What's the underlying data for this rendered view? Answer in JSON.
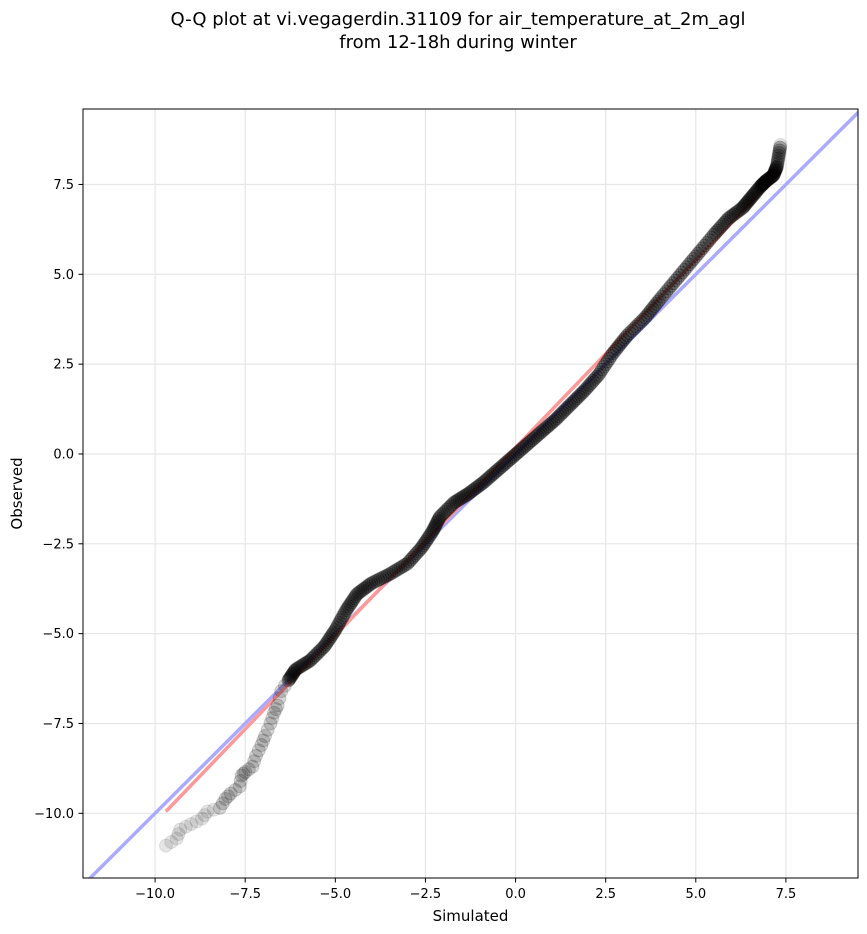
{
  "title": {
    "line1": "Q-Q plot at vi.vegagerdin.31109 for air_temperature_at_2m_agl",
    "line2": "from 12-18h during winter"
  },
  "chart_data": {
    "type": "scatter",
    "xlabel": "Simulated",
    "ylabel": "Observed",
    "xlim": [
      -12,
      9.5
    ],
    "ylim": [
      -11.8,
      9.6
    ],
    "xticks": [
      -10.0,
      -7.5,
      -5.0,
      -2.5,
      0.0,
      2.5,
      5.0,
      7.5
    ],
    "xtick_labels": [
      "−10.0",
      "−7.5",
      "−5.0",
      "−2.5",
      "0.0",
      "2.5",
      "5.0",
      "7.5"
    ],
    "yticks": [
      -10.0,
      -7.5,
      -5.0,
      -2.5,
      0.0,
      2.5,
      5.0,
      7.5
    ],
    "ytick_labels": [
      "−10.0",
      "−7.5",
      "−5.0",
      "−2.5",
      "0.0",
      "2.5",
      "5.0",
      "7.5"
    ],
    "grid": true,
    "reference_line": {
      "slope": 1,
      "intercept": 0,
      "color": "#aaaaff"
    },
    "fit_line": {
      "x": [
        -9.7,
        7.35
      ],
      "y": [
        -9.95,
        7.85
      ],
      "color": "#ff9999"
    },
    "point_color": "#000000",
    "quantile_curve": [
      [
        -9.7,
        -10.9
      ],
      [
        -9.4,
        -10.7
      ],
      [
        -9.3,
        -10.45
      ],
      [
        -9.0,
        -10.3
      ],
      [
        -8.7,
        -10.15
      ],
      [
        -8.55,
        -9.95
      ],
      [
        -8.2,
        -9.85
      ],
      [
        -8.05,
        -9.6
      ],
      [
        -7.9,
        -9.45
      ],
      [
        -7.65,
        -9.25
      ],
      [
        -7.6,
        -8.95
      ],
      [
        -7.5,
        -8.85
      ],
      [
        -7.3,
        -8.7
      ],
      [
        -7.2,
        -8.4
      ],
      [
        -7.05,
        -8.1
      ],
      [
        -6.95,
        -7.85
      ],
      [
        -6.8,
        -7.5
      ],
      [
        -6.7,
        -7.2
      ],
      [
        -6.6,
        -7.0
      ],
      [
        -6.5,
        -6.6
      ],
      [
        -6.3,
        -6.3
      ],
      [
        -6.1,
        -6.0
      ],
      [
        -5.7,
        -5.75
      ],
      [
        -5.3,
        -5.35
      ],
      [
        -5.0,
        -4.9
      ],
      [
        -4.7,
        -4.35
      ],
      [
        -4.4,
        -3.9
      ],
      [
        -4.0,
        -3.6
      ],
      [
        -3.5,
        -3.35
      ],
      [
        -3.0,
        -3.05
      ],
      [
        -2.6,
        -2.6
      ],
      [
        -2.3,
        -2.15
      ],
      [
        -2.1,
        -1.75
      ],
      [
        -1.7,
        -1.35
      ],
      [
        -1.3,
        -1.1
      ],
      [
        -0.9,
        -0.8
      ],
      [
        -0.5,
        -0.45
      ],
      [
        -0.1,
        -0.1
      ],
      [
        0.3,
        0.25
      ],
      [
        0.7,
        0.6
      ],
      [
        1.1,
        0.95
      ],
      [
        1.5,
        1.35
      ],
      [
        1.9,
        1.75
      ],
      [
        2.3,
        2.2
      ],
      [
        2.7,
        2.8
      ],
      [
        3.1,
        3.3
      ],
      [
        3.6,
        3.8
      ],
      [
        4.0,
        4.3
      ],
      [
        4.5,
        4.9
      ],
      [
        5.0,
        5.5
      ],
      [
        5.5,
        6.1
      ],
      [
        5.9,
        6.55
      ],
      [
        6.3,
        6.85
      ],
      [
        6.55,
        7.15
      ],
      [
        6.8,
        7.45
      ],
      [
        6.95,
        7.6
      ],
      [
        7.15,
        7.75
      ],
      [
        7.25,
        8.0
      ],
      [
        7.35,
        8.6
      ]
    ]
  }
}
